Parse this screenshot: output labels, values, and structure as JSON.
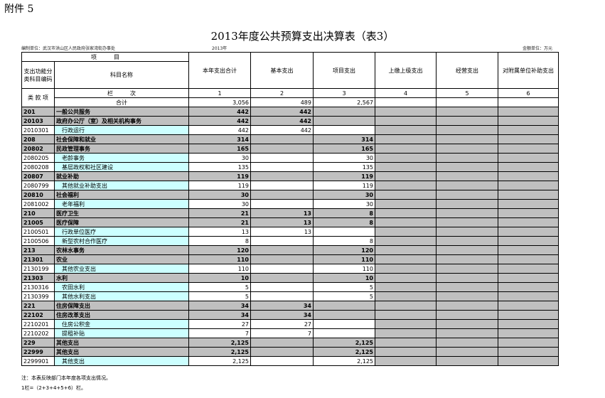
{
  "header": {
    "attachment": "附件 5",
    "title": "2013年度公共预算支出决算表（表3）",
    "unit": "编制单位：武汉市洪山区人民政府张家湾街办事处",
    "year": "2013年",
    "currency": "金额单位：万元"
  },
  "table": {
    "item_header": "项　　　目",
    "code_header": "支出功能分类科目编码",
    "name_header": "科目名称",
    "columns": [
      "本年支出合计",
      "基本支出",
      "项目支出",
      "上缴上级支出",
      "经营支出",
      "对附属单位补助支出"
    ],
    "level_header": "类 款 项",
    "column_no_header": "栏　　　次",
    "column_numbers": [
      "1",
      "2",
      "3",
      "4",
      "5",
      "6"
    ],
    "total": {
      "label": "合计",
      "values": [
        "3,056",
        "489",
        "2,567"
      ]
    },
    "rows": [
      {
        "code": "201",
        "name": "一般公共服务",
        "values": [
          "442",
          "442",
          null
        ]
      },
      {
        "code": "20103",
        "name": "政府办公厅（室）及相关机构事务",
        "values": [
          "442",
          "442",
          null
        ]
      },
      {
        "code": "2010301",
        "name": "行政运行",
        "values": [
          "442",
          "442",
          null
        ]
      },
      {
        "code": "208",
        "name": "社会保障和就业",
        "values": [
          "314",
          null,
          "314"
        ]
      },
      {
        "code": "20802",
        "name": "民政管理事务",
        "values": [
          "165",
          null,
          "165"
        ]
      },
      {
        "code": "2080205",
        "name": "老龄事务",
        "values": [
          "30",
          null,
          "30"
        ]
      },
      {
        "code": "2080208",
        "name": "基层政权和社区建设",
        "values": [
          "135",
          null,
          "135"
        ]
      },
      {
        "code": "20807",
        "name": "就业补助",
        "values": [
          "119",
          null,
          "119"
        ]
      },
      {
        "code": "2080799",
        "name": "其他就业补助支出",
        "values": [
          "119",
          null,
          "119"
        ]
      },
      {
        "code": "20810",
        "name": "社会福利",
        "values": [
          "30",
          null,
          "30"
        ]
      },
      {
        "code": "2081002",
        "name": "老年福利",
        "values": [
          "30",
          null,
          "30"
        ]
      },
      {
        "code": "210",
        "name": "医疗卫生",
        "values": [
          "21",
          "13",
          "8"
        ]
      },
      {
        "code": "21005",
        "name": "医疗保障",
        "values": [
          "21",
          "13",
          "8"
        ]
      },
      {
        "code": "2100501",
        "name": "行政单位医疗",
        "values": [
          "13",
          "13",
          null
        ]
      },
      {
        "code": "2100506",
        "name": "新型农村合作医疗",
        "values": [
          "8",
          null,
          "8"
        ]
      },
      {
        "code": "213",
        "name": "农林水事务",
        "values": [
          "120",
          null,
          "120"
        ]
      },
      {
        "code": "21301",
        "name": "农业",
        "values": [
          "110",
          null,
          "110"
        ]
      },
      {
        "code": "2130199",
        "name": "其他农业支出",
        "values": [
          "110",
          null,
          "110"
        ]
      },
      {
        "code": "21303",
        "name": "水利",
        "values": [
          "10",
          null,
          "10"
        ]
      },
      {
        "code": "2130316",
        "name": "农田水利",
        "values": [
          "5",
          null,
          "5"
        ]
      },
      {
        "code": "2130399",
        "name": "其他水利支出",
        "values": [
          "5",
          null,
          "5"
        ]
      },
      {
        "code": "221",
        "name": "住房保障支出",
        "values": [
          "34",
          "34",
          null
        ]
      },
      {
        "code": "22102",
        "name": "住房改革支出",
        "values": [
          "34",
          "34",
          null
        ]
      },
      {
        "code": "2210201",
        "name": "住房公积金",
        "values": [
          "27",
          "27",
          null
        ]
      },
      {
        "code": "2210202",
        "name": "提租补贴",
        "values": [
          "7",
          "7",
          null
        ]
      },
      {
        "code": "229",
        "name": "其他支出",
        "values": [
          "2,125",
          null,
          "2,125"
        ]
      },
      {
        "code": "22999",
        "name": "其他支出",
        "values": [
          "2,125",
          null,
          "2,125"
        ]
      },
      {
        "code": "2299901",
        "name": "其他支出",
        "values": [
          "2,125",
          null,
          "2,125"
        ]
      }
    ]
  },
  "notes": [
    "注：本表反映部门本年度各项支出情况。",
    "1栏=（2+3+4+5+6）栏。"
  ]
}
